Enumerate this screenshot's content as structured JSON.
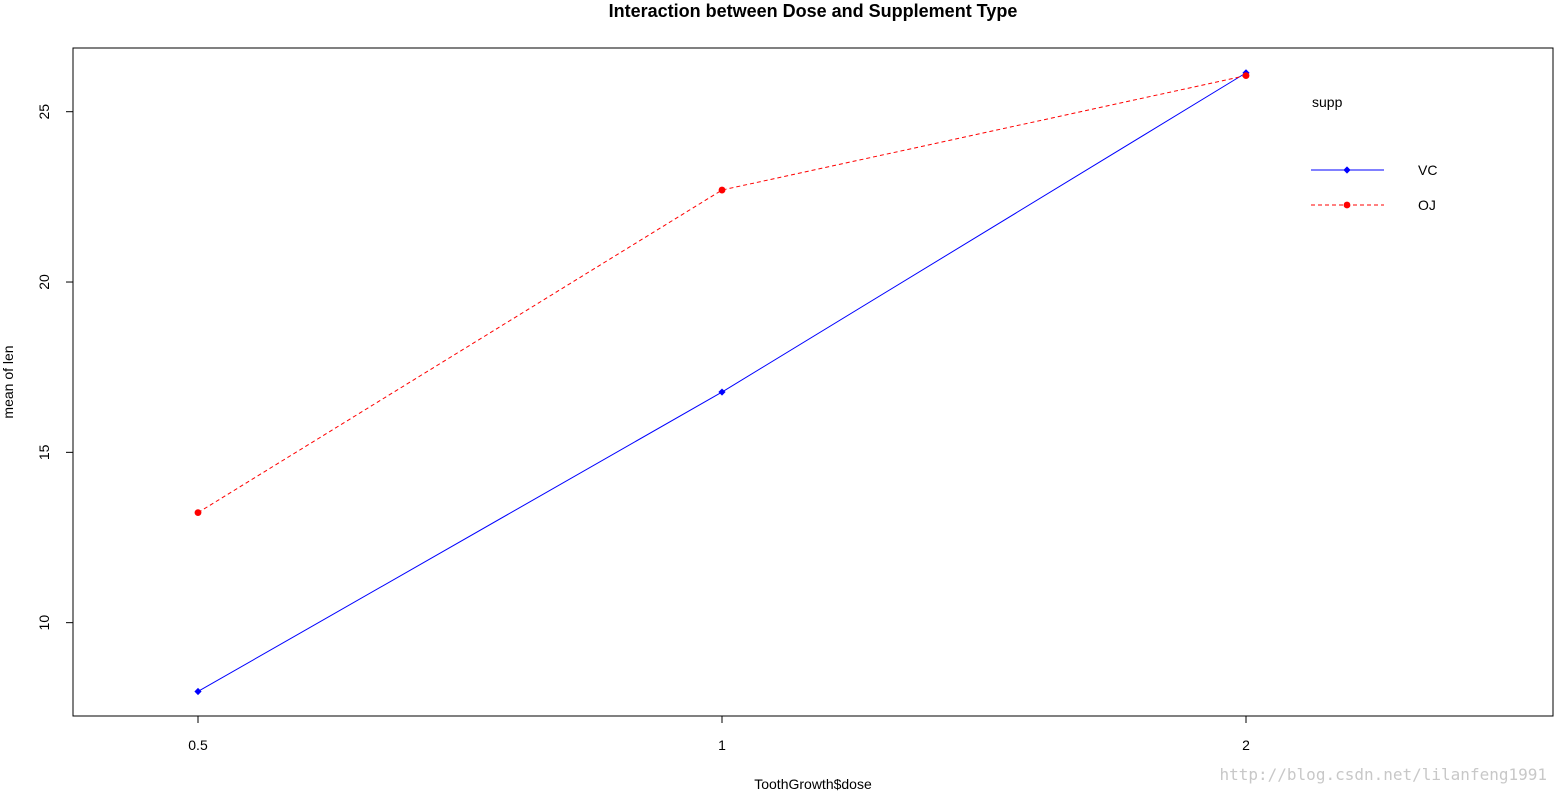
{
  "chart_data": {
    "type": "line",
    "title": "Interaction between Dose and Supplement Type",
    "xlabel": "ToothGrowth$dose",
    "ylabel": "mean of len",
    "categories": [
      "0.5",
      "1",
      "2"
    ],
    "ylim": [
      7.26,
      26.87
    ],
    "yticks": [
      10,
      15,
      20,
      25
    ],
    "series": [
      {
        "name": "VC",
        "values": [
          7.98,
          16.77,
          26.14
        ],
        "color": "#0000ff",
        "line_style": "solid",
        "marker": "diamond"
      },
      {
        "name": "OJ",
        "values": [
          13.23,
          22.7,
          26.06
        ],
        "color": "#ff0000",
        "line_style": "dashed",
        "marker": "circle"
      }
    ],
    "legend": {
      "title": "supp",
      "position": "top-right"
    },
    "grid": false
  },
  "watermark": "http://blog.csdn.net/lilanfeng1991"
}
